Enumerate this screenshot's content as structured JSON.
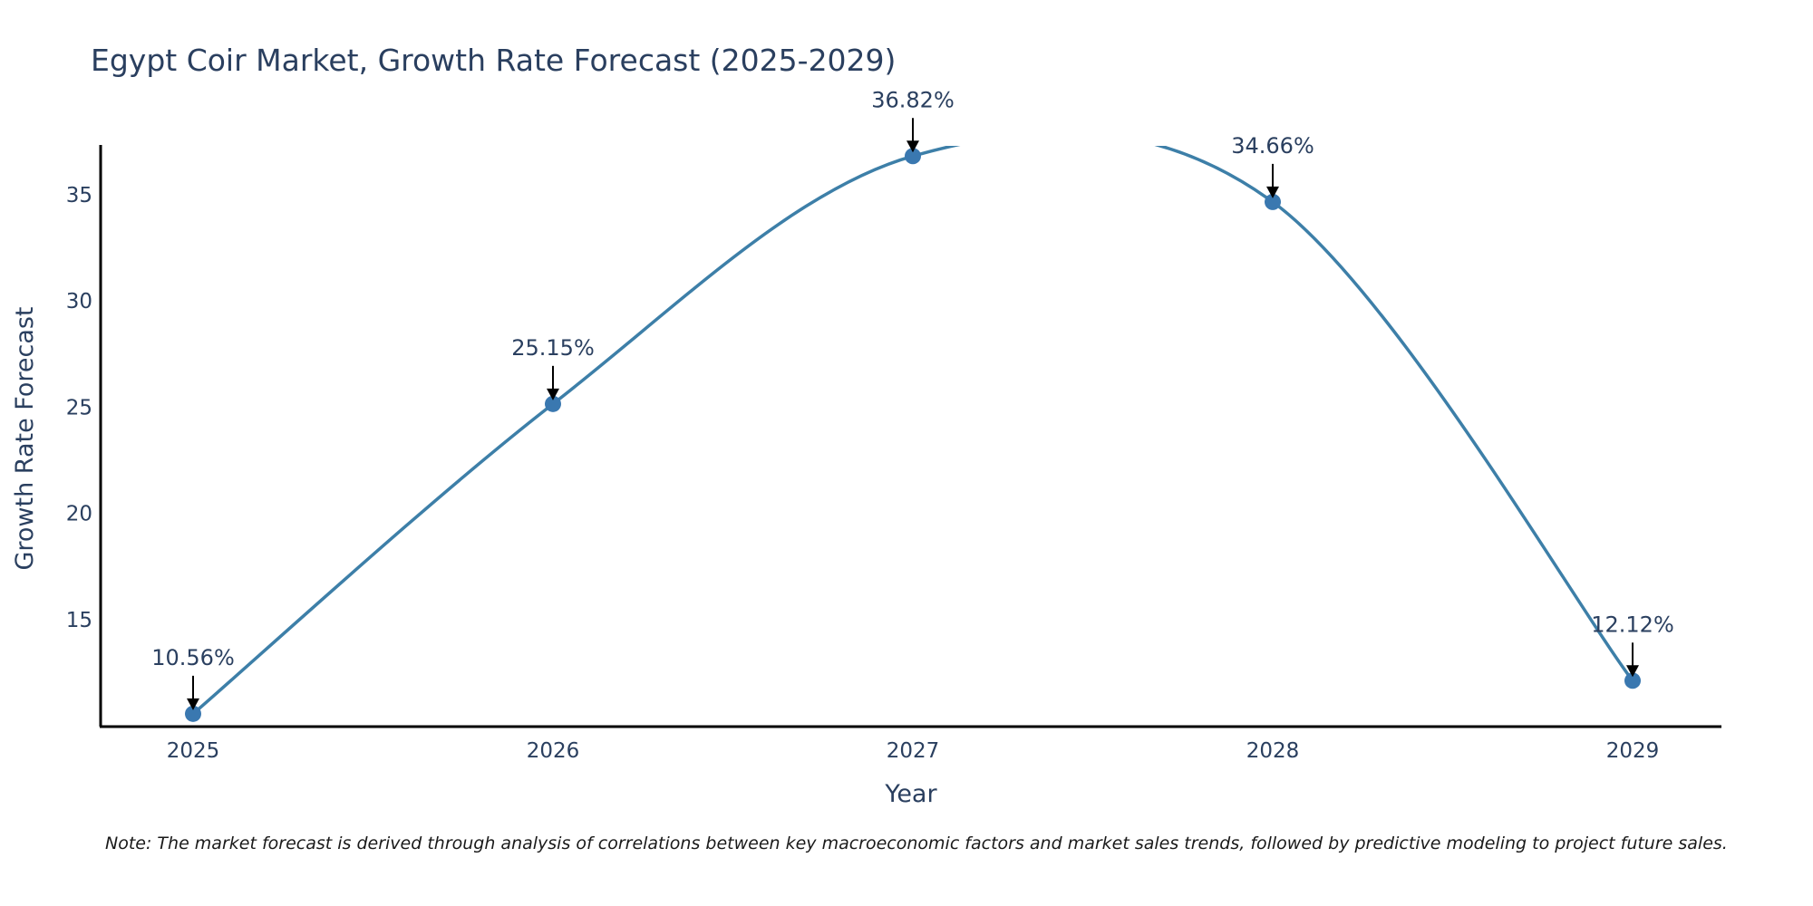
{
  "chart_data": {
    "type": "line",
    "title": "Egypt Coir Market, Growth Rate Forecast (2025-2029)",
    "xlabel": "Year",
    "ylabel": "Growth Rate Forecast",
    "categories": [
      "2025",
      "2026",
      "2027",
      "2028",
      "2029"
    ],
    "values": [
      10.56,
      25.15,
      36.82,
      34.66,
      12.12
    ],
    "annotations": [
      "10.56%",
      "25.15%",
      "36.82%",
      "34.66%",
      "12.12%"
    ],
    "yticks": [
      15,
      20,
      25,
      30,
      35
    ],
    "ylim": [
      10,
      37.3
    ],
    "grid": false,
    "line_color": "#3d7fa8",
    "marker_color": "#3a78b0",
    "note": "Note: The market forecast is derived through analysis of correlations between key macroeconomic factors and market sales trends, followed by predictive modeling to project future sales."
  }
}
